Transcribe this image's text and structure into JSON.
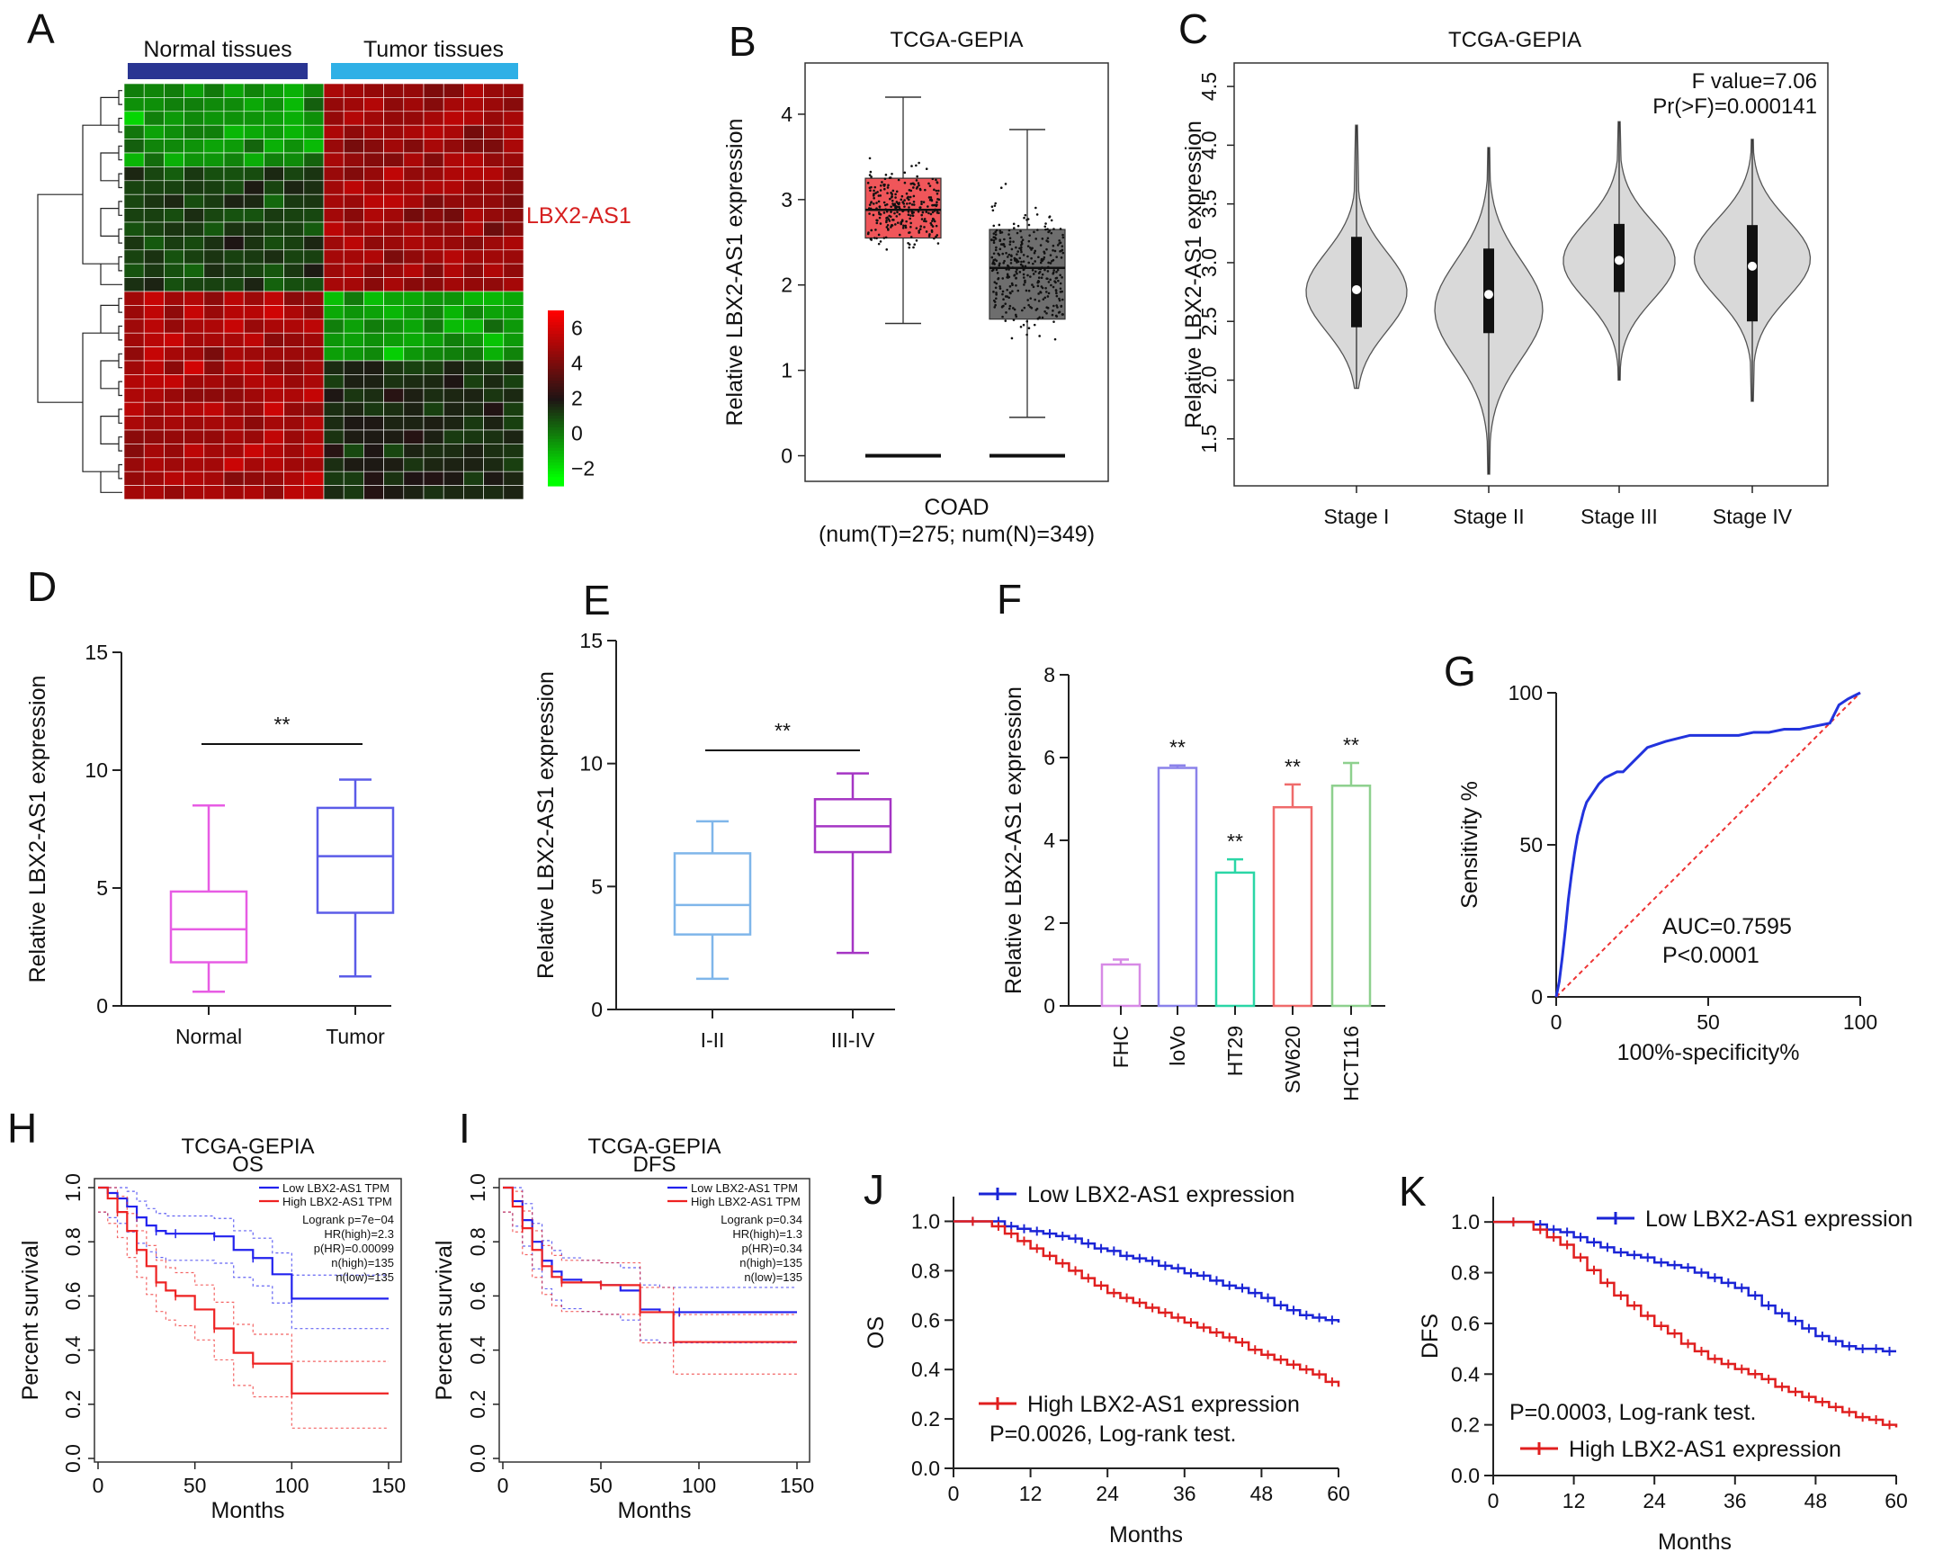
{
  "figure": {
    "panel_labels": [
      "A",
      "B",
      "C",
      "D",
      "E",
      "F",
      "G",
      "H",
      "I",
      "J",
      "K"
    ]
  },
  "chart_data": [
    {
      "panel": "A",
      "type": "heatmap",
      "group_labels": [
        "Normal tissues",
        "Tumor tissues"
      ],
      "group_colors": [
        "#2a3592",
        "#2fb0e6"
      ],
      "gene_label": "LBX2-AS1",
      "rows": 30,
      "cols": 20,
      "normal_cols": 10,
      "upper_rows": 15,
      "colorbar_ticks": [
        "6",
        "4",
        "2",
        "0",
        "−2"
      ],
      "colorbar_range": [
        -3,
        7
      ]
    },
    {
      "panel": "B",
      "type": "box",
      "title": "TCGA-GEPIA",
      "ylabel": "Relative LBX2-AS1 expression",
      "xlabel": "COAD",
      "xlabel2": "(num(T)=275; num(N)=349)",
      "ylim": [
        -0.3,
        4.6
      ],
      "yticks": [
        0,
        1,
        2,
        3,
        4
      ],
      "series": [
        {
          "name": "T",
          "color": "#f0565a",
          "q1": 2.55,
          "median": 2.88,
          "q3": 3.25,
          "whisker_low": 1.55,
          "whisker_high": 4.2
        },
        {
          "name": "N",
          "color": "#6e6e6e",
          "q1": 1.6,
          "median": 2.2,
          "q3": 2.65,
          "whisker_low": 0.45,
          "whisker_high": 3.82
        }
      ],
      "zero_line": 0
    },
    {
      "panel": "C",
      "type": "violin",
      "title": "TCGA-GEPIA",
      "ylabel": "Relative LBX2-AS1 expression",
      "annotation": [
        "F value=7.06",
        "Pr(>F)=0.000141"
      ],
      "ylim": [
        1.1,
        4.7
      ],
      "yticks": [
        1.5,
        2.0,
        2.5,
        3.0,
        3.5,
        4.0,
        4.5
      ],
      "categories": [
        "Stage I",
        "Stage II",
        "Stage III",
        "Stage IV"
      ],
      "series": [
        {
          "min": 1.93,
          "max": 4.17,
          "q1": 2.45,
          "median": 2.77,
          "q3": 3.22,
          "peak": 2.7,
          "width": 0.72
        },
        {
          "min": 1.2,
          "max": 3.98,
          "q1": 2.4,
          "median": 2.73,
          "q3": 3.12,
          "peak": 2.6,
          "width": 0.72
        },
        {
          "min": 2.0,
          "max": 4.2,
          "q1": 2.75,
          "median": 3.02,
          "q3": 3.33,
          "peak": 3.0,
          "width": 0.75
        },
        {
          "min": 1.82,
          "max": 4.05,
          "q1": 2.5,
          "median": 2.97,
          "q3": 3.32,
          "peak": 3.05,
          "width": 0.78
        }
      ]
    },
    {
      "panel": "D",
      "type": "box",
      "ylabel": "Relative LBX2-AS1 expression",
      "ylim": [
        0,
        15
      ],
      "yticks": [
        0,
        5,
        10,
        15
      ],
      "significance": "**",
      "categories": [
        "Normal",
        "Tumor"
      ],
      "series": [
        {
          "color": "#e75ce4",
          "min": 0.6,
          "q1": 1.85,
          "median": 3.25,
          "q3": 4.85,
          "max": 8.5
        },
        {
          "color": "#5b5ce8",
          "min": 1.25,
          "q1": 3.95,
          "median": 6.35,
          "q3": 8.4,
          "max": 9.6
        }
      ]
    },
    {
      "panel": "E",
      "type": "box",
      "ylabel": "Relative LBX2-AS1 expression",
      "ylim": [
        0,
        15
      ],
      "yticks": [
        0,
        5,
        10,
        15
      ],
      "significance": "**",
      "categories": [
        "I-II",
        "III-IV"
      ],
      "series": [
        {
          "color": "#7fb6ea",
          "min": 1.25,
          "q1": 3.05,
          "median": 4.25,
          "q3": 6.35,
          "max": 7.65
        },
        {
          "color": "#a535c4",
          "min": 2.3,
          "q1": 6.4,
          "median": 7.45,
          "q3": 8.55,
          "max": 9.6
        }
      ]
    },
    {
      "panel": "F",
      "type": "bar",
      "ylabel": "Relative LBX2-AS1 expression",
      "ylim": [
        0,
        8
      ],
      "yticks": [
        0,
        2,
        4,
        6,
        8
      ],
      "categories": [
        "FHC",
        "loVo",
        "HT29",
        "SW620",
        "HCT116"
      ],
      "values": [
        1.0,
        5.75,
        3.22,
        4.8,
        5.32
      ],
      "errors": [
        0.12,
        0.06,
        0.32,
        0.55,
        0.55
      ],
      "colors": [
        "#d78ae6",
        "#8b82ea",
        "#2bd6a6",
        "#ef6b6b",
        "#8ed08e"
      ],
      "significance": [
        "",
        "**",
        "**",
        "**",
        "**"
      ]
    },
    {
      "panel": "G",
      "type": "line",
      "xlabel": "100%-specificity%",
      "ylabel": "Sensitivity %",
      "xlim": [
        0,
        100
      ],
      "ylim": [
        0,
        100
      ],
      "xticks": [
        0,
        50,
        100
      ],
      "yticks": [
        0,
        50,
        100
      ],
      "annotation": [
        "AUC=0.7595",
        "P<0.0001"
      ],
      "x": [
        0,
        1,
        2,
        3,
        4,
        5,
        6,
        7,
        8,
        9,
        10,
        12,
        14,
        16,
        18,
        20,
        22,
        25,
        28,
        30,
        33,
        36,
        40,
        44,
        48,
        52,
        56,
        60,
        65,
        70,
        75,
        80,
        85,
        90,
        93,
        96,
        98,
        100
      ],
      "y": [
        0,
        5,
        13,
        22,
        32,
        40,
        47,
        53,
        57,
        61,
        64,
        67,
        70,
        72,
        73,
        74,
        74,
        77,
        80,
        82,
        83,
        84,
        85,
        86,
        86,
        86,
        86,
        86,
        87,
        87,
        88,
        88,
        89,
        90,
        96,
        98,
        99,
        100
      ]
    },
    {
      "panel": "H",
      "type": "line",
      "title": "TCGA-GEPIA",
      "subtitle": "OS",
      "xlabel": "Months",
      "ylabel": "Percent survival",
      "xlim": [
        0,
        150
      ],
      "ylim": [
        0,
        1
      ],
      "xticks": [
        0,
        50,
        100,
        150
      ],
      "yticks": [
        0.0,
        0.2,
        0.4,
        0.6,
        0.8,
        1.0
      ],
      "legend": [
        "Low LBX2-AS1 TPM",
        "High LBX2-AS1 TPM"
      ],
      "stats": [
        "Logrank p=7e−04",
        "HR(high)=2.3",
        "p(HR)=0.00099",
        "n(high)=135",
        "n(low)=135"
      ],
      "series": [
        {
          "name": "Low LBX2-AS1 TPM",
          "color": "#2222ee",
          "x": [
            0,
            5,
            10,
            15,
            20,
            25,
            30,
            35,
            40,
            50,
            60,
            70,
            80,
            90,
            100,
            150
          ],
          "y": [
            1.0,
            0.98,
            0.96,
            0.93,
            0.89,
            0.86,
            0.84,
            0.83,
            0.83,
            0.83,
            0.82,
            0.77,
            0.74,
            0.68,
            0.59,
            0.59
          ]
        },
        {
          "name": "High LBX2-AS1 TPM",
          "color": "#ee2222",
          "x": [
            0,
            5,
            10,
            15,
            20,
            25,
            30,
            35,
            40,
            50,
            60,
            70,
            80,
            90,
            100,
            150
          ],
          "y": [
            1.0,
            0.96,
            0.91,
            0.84,
            0.77,
            0.71,
            0.65,
            0.62,
            0.6,
            0.55,
            0.48,
            0.39,
            0.35,
            0.35,
            0.24,
            0.24
          ]
        }
      ]
    },
    {
      "panel": "I",
      "type": "line",
      "title": "TCGA-GEPIA",
      "subtitle": "DFS",
      "xlabel": "Months",
      "ylabel": "Percent survival",
      "xlim": [
        0,
        150
      ],
      "ylim": [
        0,
        1
      ],
      "xticks": [
        0,
        50,
        100,
        150
      ],
      "yticks": [
        0.0,
        0.2,
        0.4,
        0.6,
        0.8,
        1.0
      ],
      "legend": [
        "Low LBX2-AS1 TPM",
        "High LBX2-AS1 TPM"
      ],
      "stats": [
        "Logrank p=0.34",
        "HR(high)=1.3",
        "p(HR)=0.34",
        "n(high)=135",
        "n(low)=135"
      ],
      "series": [
        {
          "name": "Low LBX2-AS1 TPM",
          "color": "#2222ee",
          "x": [
            0,
            5,
            10,
            15,
            20,
            25,
            30,
            40,
            50,
            60,
            70,
            80,
            90,
            150
          ],
          "y": [
            1.0,
            0.95,
            0.88,
            0.8,
            0.73,
            0.69,
            0.66,
            0.65,
            0.64,
            0.62,
            0.55,
            0.54,
            0.54,
            0.54
          ]
        },
        {
          "name": "High LBX2-AS1 TPM",
          "color": "#ee2222",
          "x": [
            0,
            5,
            10,
            15,
            20,
            25,
            30,
            40,
            50,
            60,
            70,
            80,
            87,
            150
          ],
          "y": [
            1.0,
            0.93,
            0.85,
            0.77,
            0.71,
            0.67,
            0.65,
            0.65,
            0.64,
            0.64,
            0.54,
            0.54,
            0.43,
            0.43
          ]
        }
      ]
    },
    {
      "panel": "J",
      "type": "line",
      "xlabel": "Months",
      "ylabel": "OS",
      "xlim": [
        0,
        60
      ],
      "ylim": [
        0,
        1.1
      ],
      "xticks": [
        0,
        12,
        24,
        36,
        48,
        60
      ],
      "yticks": [
        0.0,
        0.2,
        0.4,
        0.6,
        0.8,
        1.0
      ],
      "legend": [
        "Low LBX2-AS1 expression",
        "High LBX2-AS1 expression"
      ],
      "annotation": "P=0.0026, Log-rank test.",
      "series": [
        {
          "name": "Low LBX2-AS1 expression",
          "color": "#1a24d6",
          "x": [
            0,
            6,
            8,
            10,
            12,
            14,
            16,
            18,
            20,
            22,
            24,
            26,
            28,
            30,
            32,
            34,
            36,
            38,
            40,
            42,
            44,
            46,
            48,
            50,
            52,
            54,
            56,
            58,
            60
          ],
          "y": [
            1.0,
            1.0,
            0.98,
            0.97,
            0.96,
            0.95,
            0.94,
            0.93,
            0.91,
            0.89,
            0.88,
            0.86,
            0.85,
            0.84,
            0.82,
            0.81,
            0.79,
            0.78,
            0.76,
            0.74,
            0.73,
            0.71,
            0.69,
            0.66,
            0.64,
            0.62,
            0.61,
            0.6,
            0.59
          ]
        },
        {
          "name": "High LBX2-AS1 expression",
          "color": "#e01f1f",
          "x": [
            0,
            6,
            8,
            10,
            12,
            14,
            16,
            18,
            20,
            22,
            24,
            26,
            28,
            30,
            32,
            34,
            36,
            38,
            40,
            42,
            44,
            46,
            48,
            50,
            52,
            54,
            56,
            58,
            60
          ],
          "y": [
            1.0,
            0.98,
            0.95,
            0.92,
            0.89,
            0.86,
            0.83,
            0.8,
            0.77,
            0.74,
            0.71,
            0.69,
            0.67,
            0.65,
            0.63,
            0.61,
            0.59,
            0.57,
            0.55,
            0.53,
            0.51,
            0.48,
            0.46,
            0.44,
            0.42,
            0.4,
            0.38,
            0.35,
            0.33
          ]
        }
      ]
    },
    {
      "panel": "K",
      "type": "line",
      "xlabel": "Months",
      "ylabel": "DFS",
      "xlim": [
        0,
        60
      ],
      "ylim": [
        0,
        1.1
      ],
      "xticks": [
        0,
        12,
        24,
        36,
        48,
        60
      ],
      "yticks": [
        0.0,
        0.2,
        0.4,
        0.6,
        0.8,
        1.0
      ],
      "legend": [
        "Low LBX2-AS1 expression",
        "High LBX2-AS1 expression"
      ],
      "annotation": "P=0.0003, Log-rank test.",
      "series": [
        {
          "name": "Low LBX2-AS1 expression",
          "color": "#1a24d6",
          "x": [
            0,
            6,
            8,
            10,
            12,
            14,
            16,
            18,
            20,
            22,
            24,
            26,
            28,
            30,
            32,
            34,
            36,
            38,
            40,
            42,
            44,
            46,
            48,
            50,
            52,
            54,
            56,
            58,
            60
          ],
          "y": [
            1.0,
            0.99,
            0.97,
            0.96,
            0.94,
            0.92,
            0.9,
            0.88,
            0.87,
            0.86,
            0.84,
            0.83,
            0.82,
            0.8,
            0.78,
            0.76,
            0.74,
            0.71,
            0.67,
            0.64,
            0.61,
            0.58,
            0.55,
            0.53,
            0.51,
            0.5,
            0.5,
            0.49,
            0.49
          ]
        },
        {
          "name": "High LBX2-AS1 expression",
          "color": "#e01f1f",
          "x": [
            0,
            6,
            8,
            10,
            12,
            14,
            16,
            18,
            20,
            22,
            24,
            26,
            28,
            30,
            32,
            34,
            36,
            38,
            40,
            42,
            44,
            46,
            48,
            50,
            52,
            54,
            56,
            58,
            60
          ],
          "y": [
            1.0,
            0.97,
            0.94,
            0.91,
            0.86,
            0.81,
            0.76,
            0.71,
            0.67,
            0.63,
            0.59,
            0.56,
            0.52,
            0.49,
            0.46,
            0.44,
            0.42,
            0.4,
            0.38,
            0.35,
            0.33,
            0.31,
            0.29,
            0.27,
            0.25,
            0.23,
            0.22,
            0.2,
            0.19
          ]
        }
      ]
    }
  ]
}
